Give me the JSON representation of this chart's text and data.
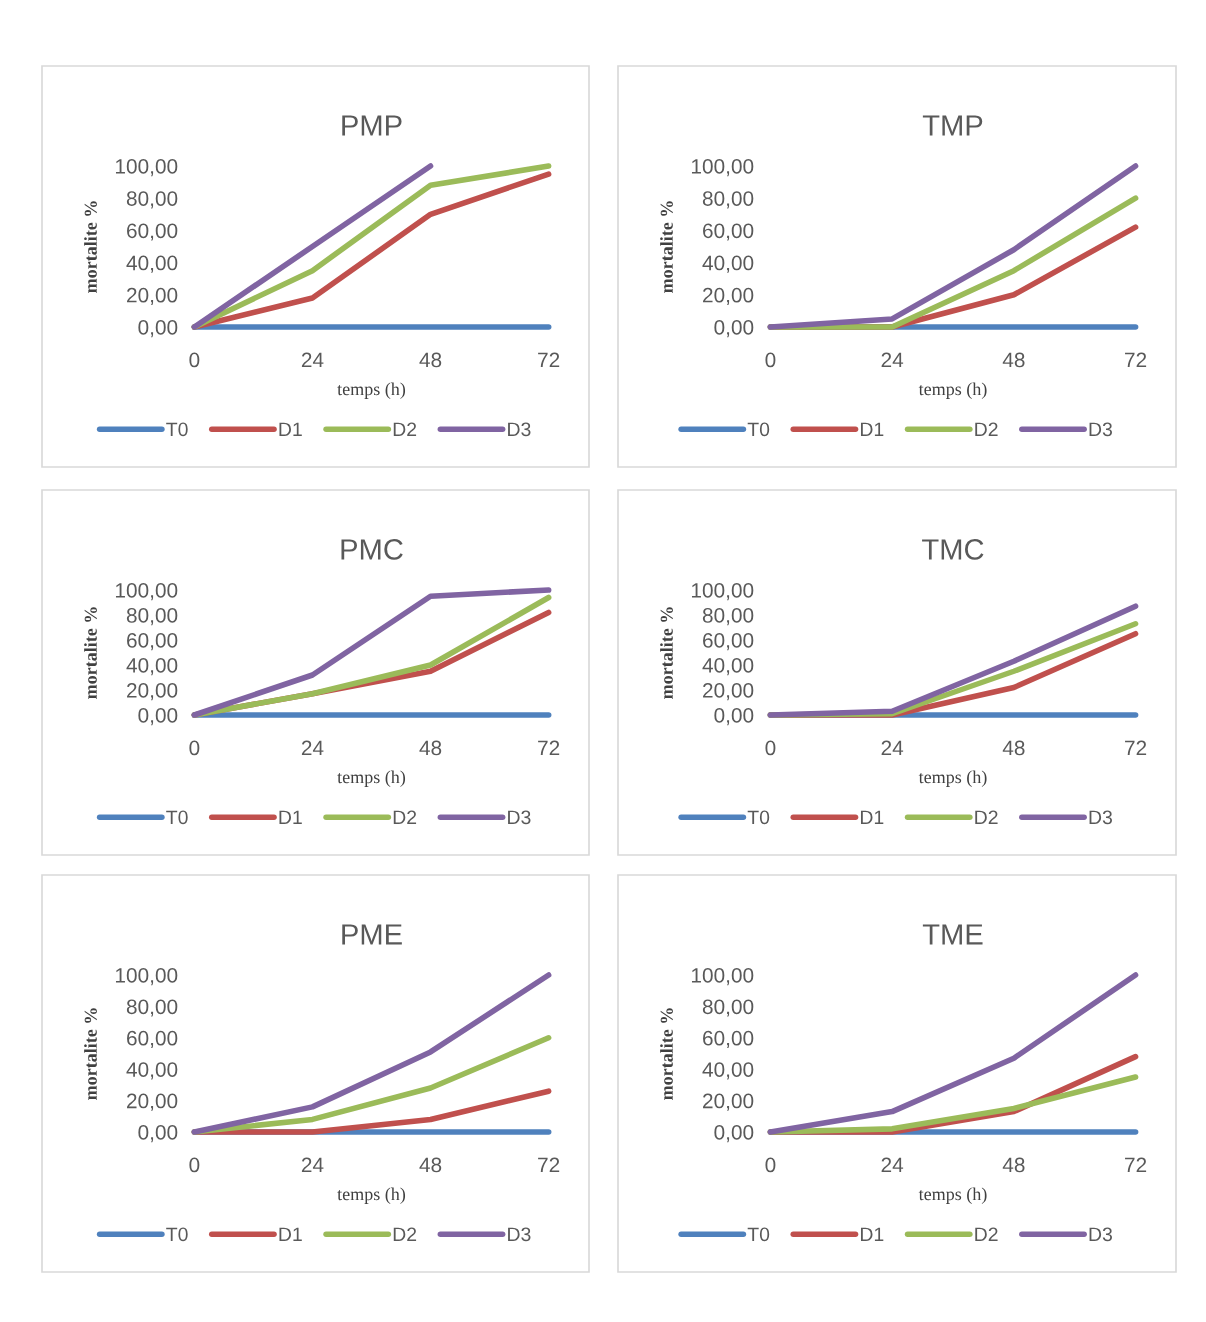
{
  "chart_data": [
    {
      "type": "line",
      "title": "PMP",
      "xlabel": "temps (h)",
      "ylabel": "mortalite %",
      "categories": [
        "0",
        "24",
        "48",
        "72"
      ],
      "ylim": [
        0,
        100
      ],
      "yticks": [
        {
          "value": 0,
          "label": "0,00"
        },
        {
          "value": 20,
          "label": "20,00"
        },
        {
          "value": 40,
          "label": "40,00"
        },
        {
          "value": 60,
          "label": "60,00"
        },
        {
          "value": 80,
          "label": "80,00"
        },
        {
          "value": 100,
          "label": "100,00"
        }
      ],
      "grid": false,
      "legend": "bottom",
      "series": [
        {
          "name": "T0",
          "color": "#4f81bd",
          "values": [
            0,
            0,
            0,
            0
          ]
        },
        {
          "name": "D1",
          "color": "#c0504d",
          "values": [
            0,
            18,
            70,
            95
          ]
        },
        {
          "name": "D2",
          "color": "#9bbb59",
          "values": [
            0,
            35,
            88,
            100
          ]
        },
        {
          "name": "D3",
          "color": "#8064a2",
          "values": [
            0,
            50,
            100,
            null
          ]
        }
      ]
    },
    {
      "type": "line",
      "title": "TMP",
      "xlabel": "temps (h)",
      "ylabel": "mortalite %",
      "categories": [
        "0",
        "24",
        "48",
        "72"
      ],
      "ylim": [
        0,
        100
      ],
      "yticks": [
        {
          "value": 0,
          "label": "0,00"
        },
        {
          "value": 20,
          "label": "20,00"
        },
        {
          "value": 40,
          "label": "40,00"
        },
        {
          "value": 60,
          "label": "60,00"
        },
        {
          "value": 80,
          "label": "80,00"
        },
        {
          "value": 100,
          "label": "100,00"
        }
      ],
      "grid": false,
      "legend": "bottom",
      "series": [
        {
          "name": "T0",
          "color": "#4f81bd",
          "values": [
            0,
            0,
            0,
            0
          ]
        },
        {
          "name": "D1",
          "color": "#c0504d",
          "values": [
            0,
            0,
            20,
            62
          ]
        },
        {
          "name": "D2",
          "color": "#9bbb59",
          "values": [
            0,
            0,
            35,
            80
          ]
        },
        {
          "name": "D3",
          "color": "#8064a2",
          "values": [
            0,
            5,
            48,
            100
          ]
        }
      ]
    },
    {
      "type": "line",
      "title": "PMC",
      "xlabel": "temps (h)",
      "ylabel": "mortalite %",
      "categories": [
        "0",
        "24",
        "48",
        "72"
      ],
      "ylim": [
        0,
        100
      ],
      "yticks": [
        {
          "value": 0,
          "label": "0,00"
        },
        {
          "value": 20,
          "label": "20,00"
        },
        {
          "value": 40,
          "label": "40,00"
        },
        {
          "value": 60,
          "label": "60,00"
        },
        {
          "value": 80,
          "label": "80,00"
        },
        {
          "value": 100,
          "label": "100,00"
        }
      ],
      "grid": false,
      "legend": "bottom",
      "series": [
        {
          "name": "T0",
          "color": "#4f81bd",
          "values": [
            0,
            0,
            0,
            0
          ]
        },
        {
          "name": "D1",
          "color": "#c0504d",
          "values": [
            0,
            17,
            35,
            82
          ]
        },
        {
          "name": "D2",
          "color": "#9bbb59",
          "values": [
            0,
            17,
            40,
            94
          ]
        },
        {
          "name": "D3",
          "color": "#8064a2",
          "values": [
            0,
            32,
            95,
            100
          ]
        }
      ]
    },
    {
      "type": "line",
      "title": "TMC",
      "xlabel": "temps (h)",
      "ylabel": "mortalite %",
      "categories": [
        "0",
        "24",
        "48",
        "72"
      ],
      "ylim": [
        0,
        100
      ],
      "yticks": [
        {
          "value": 0,
          "label": "0,00"
        },
        {
          "value": 20,
          "label": "20,00"
        },
        {
          "value": 40,
          "label": "40,00"
        },
        {
          "value": 60,
          "label": "60,00"
        },
        {
          "value": 80,
          "label": "80,00"
        },
        {
          "value": 100,
          "label": "100,00"
        }
      ],
      "grid": false,
      "legend": "bottom",
      "series": [
        {
          "name": "T0",
          "color": "#4f81bd",
          "values": [
            0,
            0,
            0,
            0
          ]
        },
        {
          "name": "D1",
          "color": "#c0504d",
          "values": [
            0,
            0,
            22,
            65
          ]
        },
        {
          "name": "D2",
          "color": "#9bbb59",
          "values": [
            0,
            1,
            35,
            73
          ]
        },
        {
          "name": "D3",
          "color": "#8064a2",
          "values": [
            0,
            3,
            43,
            87
          ]
        }
      ]
    },
    {
      "type": "line",
      "title": "PME",
      "xlabel": "temps (h)",
      "ylabel": "mortalite %",
      "categories": [
        "0",
        "24",
        "48",
        "72"
      ],
      "ylim": [
        0,
        100
      ],
      "yticks": [
        {
          "value": 0,
          "label": "0,00"
        },
        {
          "value": 20,
          "label": "20,00"
        },
        {
          "value": 40,
          "label": "40,00"
        },
        {
          "value": 60,
          "label": "60,00"
        },
        {
          "value": 80,
          "label": "80,00"
        },
        {
          "value": 100,
          "label": "100,00"
        }
      ],
      "grid": false,
      "legend": "bottom",
      "series": [
        {
          "name": "T0",
          "color": "#4f81bd",
          "values": [
            0,
            0,
            0,
            0
          ]
        },
        {
          "name": "D1",
          "color": "#c0504d",
          "values": [
            0,
            0,
            8,
            26
          ]
        },
        {
          "name": "D2",
          "color": "#9bbb59",
          "values": [
            0,
            8,
            28,
            60
          ]
        },
        {
          "name": "D3",
          "color": "#8064a2",
          "values": [
            0,
            16,
            51,
            100
          ]
        }
      ]
    },
    {
      "type": "line",
      "title": "TME",
      "xlabel": "temps (h)",
      "ylabel": "mortalite %",
      "categories": [
        "0",
        "24",
        "48",
        "72"
      ],
      "ylim": [
        0,
        100
      ],
      "yticks": [
        {
          "value": 0,
          "label": "0,00"
        },
        {
          "value": 20,
          "label": "20,00"
        },
        {
          "value": 40,
          "label": "40,00"
        },
        {
          "value": 60,
          "label": "60,00"
        },
        {
          "value": 80,
          "label": "80,00"
        },
        {
          "value": 100,
          "label": "100,00"
        }
      ],
      "grid": false,
      "legend": "bottom",
      "series": [
        {
          "name": "T0",
          "color": "#4f81bd",
          "values": [
            0,
            0,
            0,
            0
          ]
        },
        {
          "name": "D1",
          "color": "#c0504d",
          "values": [
            0,
            0,
            13,
            48
          ]
        },
        {
          "name": "D2",
          "color": "#9bbb59",
          "values": [
            0,
            2,
            15,
            35
          ]
        },
        {
          "name": "D3",
          "color": "#8064a2",
          "values": [
            0,
            13,
            47,
            100
          ]
        }
      ]
    }
  ]
}
